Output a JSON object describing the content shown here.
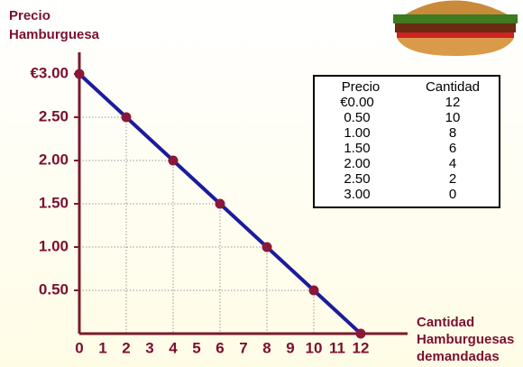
{
  "chart_data": {
    "type": "line",
    "y_label": [
      "Precio",
      "Hamburguesa"
    ],
    "x_label": [
      "Cantidad",
      "Hamburguesas",
      "demandadas"
    ],
    "x": [
      0,
      2,
      4,
      6,
      8,
      10,
      12
    ],
    "series": [
      {
        "color": "#1c1c9c",
        "marker_color": "#8a1838",
        "values": [
          3,
          2.5,
          2,
          1.5,
          1,
          0.5,
          0
        ]
      }
    ],
    "xlim": [
      0,
      14
    ],
    "ylim": [
      0,
      3.25
    ],
    "xticks": [
      0,
      1,
      2,
      3,
      4,
      5,
      6,
      7,
      8,
      9,
      10,
      11,
      12
    ],
    "yticks": [
      {
        "value": 0.5,
        "label": "0.50"
      },
      {
        "value": 1,
        "label": "1.00"
      },
      {
        "value": 1.5,
        "label": "1.50"
      },
      {
        "value": 2,
        "label": "2.00"
      },
      {
        "value": 2.5,
        "label": "2.50"
      },
      {
        "value": 3,
        "label": "€3.00"
      }
    ],
    "axis_color": "#7a1a2c",
    "label_color": "#7a1030"
  },
  "table": {
    "columns": [
      "Precio",
      "Cantidad"
    ],
    "rows": [
      [
        "€0.00",
        12
      ],
      [
        "0.50",
        10
      ],
      [
        "1.00",
        8
      ],
      [
        "1.50",
        6
      ],
      [
        "2.00",
        4
      ],
      [
        "2.50",
        2
      ],
      [
        "3.00",
        0
      ]
    ]
  }
}
